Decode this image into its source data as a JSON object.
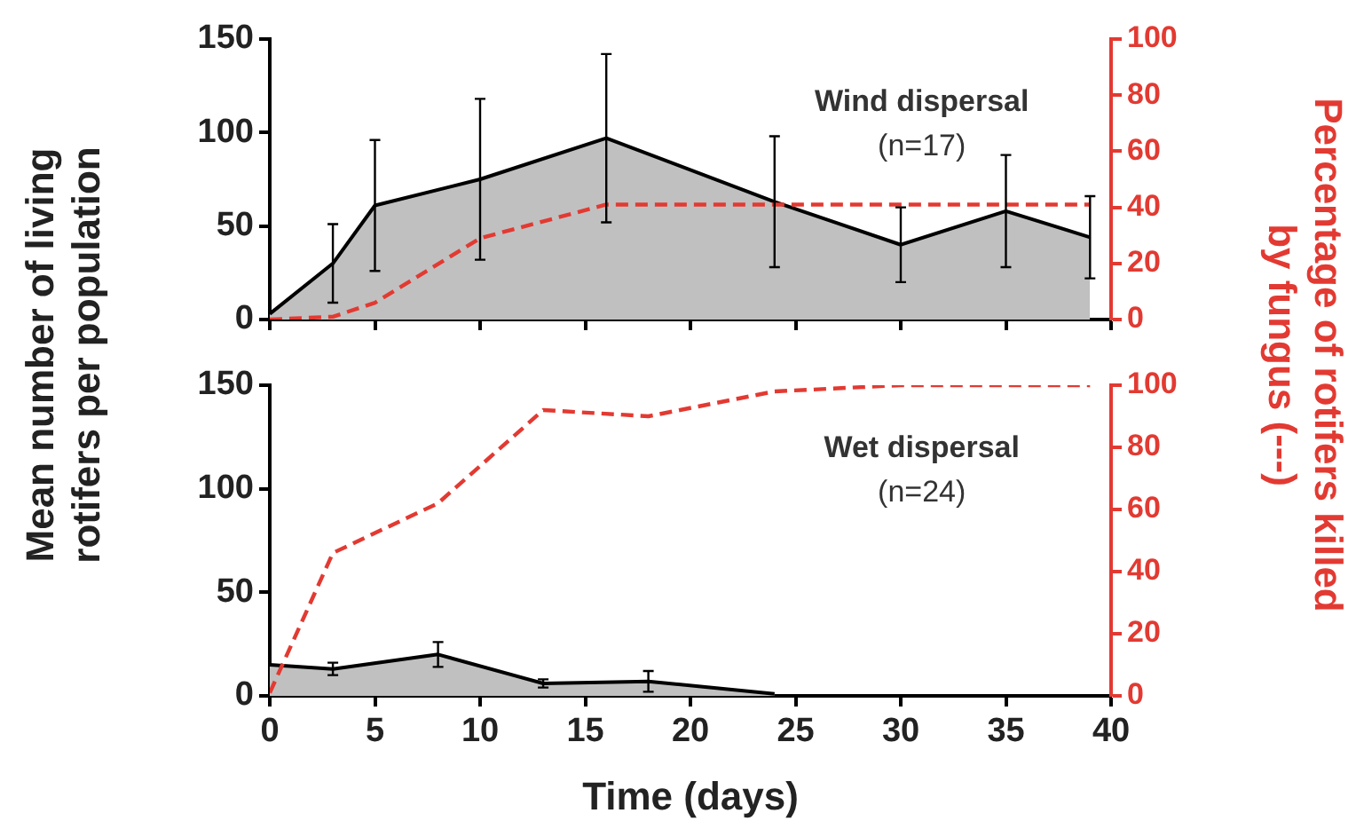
{
  "chart_data": [
    {
      "type": "area",
      "ylabel": "Mean number of living rotifers per population",
      "y2label": "Percentage of rotifers killed by fungus (---)",
      "annotations": [
        "Wind dispersal",
        "(n=17)"
      ],
      "xlim": [
        0,
        40
      ],
      "xticks": [
        0,
        5,
        10,
        15,
        20,
        25,
        30,
        35,
        40
      ],
      "ylim": [
        0,
        150
      ],
      "yticks": [
        0,
        50,
        100,
        150
      ],
      "y2lim": [
        0,
        100
      ],
      "y2ticks": [
        0,
        20,
        40,
        60,
        80,
        100
      ],
      "tick_labels": "y",
      "grid": false,
      "legend": false,
      "series": [
        {
          "type": "area",
          "color": "#c0c0c0",
          "x": [
            0,
            3,
            5,
            10,
            16,
            24,
            30,
            35,
            39
          ],
          "values": [
            3,
            30,
            61,
            75,
            97,
            63,
            40,
            58,
            44
          ],
          "errors": [
            null,
            21,
            35,
            43,
            45,
            35,
            20,
            30,
            22
          ]
        },
        {
          "type": "line",
          "axis": "y2",
          "color": "#e23a32",
          "line_style": "dashed",
          "x": [
            0,
            3,
            5,
            10,
            16,
            24,
            30,
            35,
            39
          ],
          "values": [
            0,
            1,
            6,
            29,
            41,
            41,
            41,
            41,
            41
          ]
        }
      ]
    },
    {
      "type": "area",
      "xlabel": "Time (days)",
      "annotations": [
        "Wet dispersal",
        "(n=24)"
      ],
      "xlim": [
        0,
        40
      ],
      "xticks": [
        0,
        5,
        10,
        15,
        20,
        25,
        30,
        35,
        40
      ],
      "ylim": [
        0,
        150
      ],
      "yticks": [
        0,
        50,
        100,
        150
      ],
      "y2lim": [
        0,
        100
      ],
      "y2ticks": [
        0,
        20,
        40,
        60,
        80,
        100
      ],
      "grid": false,
      "legend": false,
      "series": [
        {
          "type": "area",
          "color": "#c0c0c0",
          "x": [
            0,
            3,
            8,
            13,
            18,
            24
          ],
          "values": [
            15,
            13,
            20,
            6,
            7,
            1
          ],
          "errors": [
            null,
            3,
            6,
            2,
            5,
            null
          ]
        },
        {
          "type": "line",
          "axis": "y2",
          "color": "#e23a32",
          "line_style": "dashed",
          "x": [
            0,
            3,
            8,
            13,
            18,
            24,
            30,
            39
          ],
          "values": [
            1,
            46,
            62,
            92,
            90,
            98,
            100,
            100
          ]
        }
      ]
    }
  ]
}
